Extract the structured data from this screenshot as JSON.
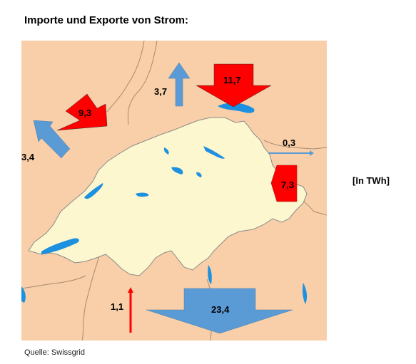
{
  "title": "Importe und Exporte von Strom:",
  "unit_label": "[In TWh]",
  "source": "Quelle: Swissgrid",
  "colors": {
    "import": "#ff0000",
    "export": "#5b9bd5",
    "switzerland": "#fdf7cf",
    "neighbors": "#f8cfa8",
    "water": "#1e90e0"
  },
  "flows": [
    {
      "id": "france-import",
      "value": "9,3",
      "direction": "import"
    },
    {
      "id": "france-export",
      "value": "3,4",
      "direction": "export"
    },
    {
      "id": "germany-export",
      "value": "3,7",
      "direction": "export"
    },
    {
      "id": "germany-import",
      "value": "11,7",
      "direction": "import"
    },
    {
      "id": "liechtenstein-export",
      "value": "0,3",
      "direction": "export"
    },
    {
      "id": "austria-import",
      "value": "7,3",
      "direction": "import"
    },
    {
      "id": "italy-import",
      "value": "1,1",
      "direction": "import"
    },
    {
      "id": "italy-export",
      "value": "23,4",
      "direction": "export"
    }
  ]
}
